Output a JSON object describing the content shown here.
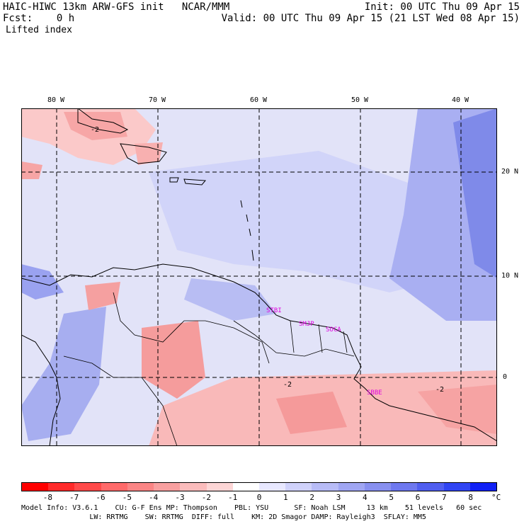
{
  "header": {
    "line1_left": "HAIC-HIWC 13km ARW-GFS init   NCAR/MMM",
    "line1_right": "Init: 00 UTC Thu 09 Apr 15",
    "line2_left": "Fcst:    0 h",
    "line2_right": "Valid: 00 UTC Thu 09 Apr 15 (21 LST Wed 08 Apr 15)",
    "field": "Lifted index"
  },
  "lon_labels": [
    "80 W",
    "70 W",
    "60 W",
    "50 W",
    "40 W"
  ],
  "lat_labels": [
    "20 N",
    "10 N",
    "0"
  ],
  "contour_labels": [
    "-2",
    "-2",
    "-2"
  ],
  "stations": [
    "STBI",
    "SMJP",
    "SOCA",
    "SBBE"
  ],
  "colorbar": {
    "ticks": [
      "-8",
      "-7",
      "-6",
      "-5",
      "-4",
      "-3",
      "-2",
      "-1",
      "0",
      "1",
      "2",
      "3",
      "4",
      "5",
      "6",
      "7",
      "8"
    ],
    "unit": "°C",
    "colors": [
      "#ff0000",
      "#ff2a2a",
      "#ff4a4a",
      "#ff6a6a",
      "#fb8585",
      "#f9a0a0",
      "#fbbcbc",
      "#fdd6d6",
      "#ffffff",
      "#e8e8ff",
      "#d0d2fb",
      "#b8bcf7",
      "#a0a6f3",
      "#8890f0",
      "#6e78ef",
      "#505ef0",
      "#3044f3",
      "#1020f5"
    ]
  },
  "footer": {
    "line1": "Model Info: V3.6.1    CU: G-F Ens MP: Thompson    PBL: YSU      SF: Noah LSM     13 km    51 levels   60 sec",
    "line2": "                LW: RRTMG    SW: RRTMG  DIFF: full    KM: 2D Smagor DAMP: Rayleigh3  SFLAY: MM5"
  }
}
